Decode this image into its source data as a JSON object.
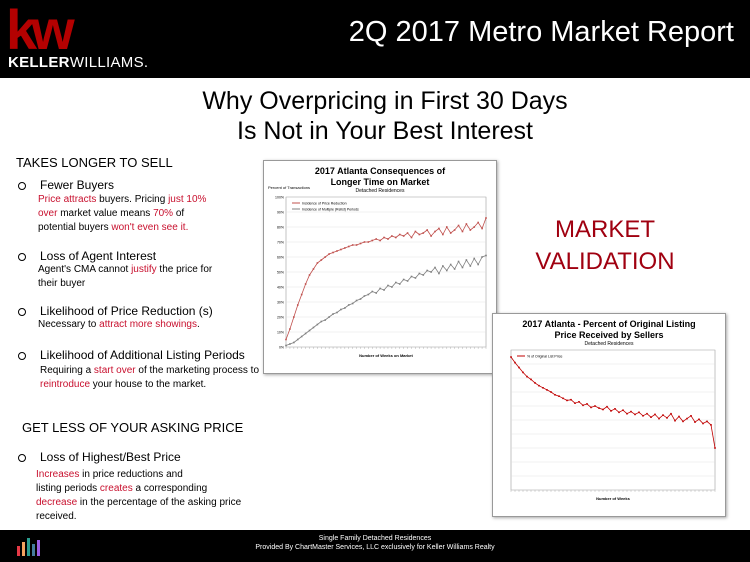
{
  "header": {
    "logo_mark": "kw",
    "logo_bold": "KELLER",
    "logo_light": "WILLIAMS.",
    "report_title": "2Q 2017 Metro Market Report"
  },
  "title_line1": "Why Overpricing in First 30 Days",
  "title_line2": "Is Not in Your Best Interest",
  "section1": {
    "heading": "TAKES LONGER TO SELL",
    "items": [
      {
        "label": "Fewer Buyers"
      },
      {
        "label": "Loss of  Agent Interest"
      },
      {
        "label": "Likelihood of Price Reduction (s)"
      },
      {
        "label": "Likelihood of Additional Listing Periods"
      }
    ],
    "fb": {
      "a": "Price",
      "b": " attracts ",
      "c": "buyers.  Pricing ",
      "d": "just 10%",
      "e": "over",
      "f": " market value means ",
      "g": "70%",
      "h": " of",
      "i": "potential buyers  ",
      "j": "won't even see it."
    },
    "ai": {
      "a": "Agent's CMA cannot ",
      "b": "justify",
      "c": " the price for",
      "d": "their buyer"
    },
    "pr": {
      "a": "Necessary to  ",
      "b": "attract more  showings",
      "c": "."
    },
    "lp": {
      "a": "Requiring a ",
      "b": "start over",
      "c": " of  the marketing process to",
      "d": "reintroduce",
      "e": "  your house to the market."
    }
  },
  "section2": {
    "heading": "GET LESS  OF YOUR ASKING  PRICE",
    "item": "Loss of Highest/Best Price",
    "desc": {
      "a": "Increases",
      "b": " in price reductions and",
      "c": "listing periods ",
      "d": "creates",
      "e": " a corresponding",
      "f": "decrease",
      "g": " in the percentage of the asking price",
      "h": "received."
    }
  },
  "market_validation": {
    "line1": "MARKET",
    "line2": "VALIDATION"
  },
  "footer": {
    "line1": "Single Family Detached Residences",
    "line2": "Provided By ChartMaster Services, LLC exclusively for Keller Williams Realty"
  },
  "colors": {
    "brand_red": "#b40101",
    "accent_red": "#c8102e",
    "validation_red": "#a00010"
  },
  "chart_data": [
    {
      "type": "line",
      "title": "2017 Atlanta Consequences of",
      "title_line2": "Longer Time on Market",
      "subtitle": "Detached Residences",
      "ylabel": "Percent of Transactions",
      "xlabel": "Number of Weeks on Market",
      "ylim": [
        0,
        100
      ],
      "yticks": [
        "100%",
        "90%",
        "80%",
        "70%",
        "60%",
        "50%",
        "40%",
        "30%",
        "20%",
        "10%",
        "0%"
      ],
      "x": [
        1,
        2,
        3,
        4,
        5,
        6,
        7,
        8,
        9,
        10,
        11,
        12,
        13,
        14,
        15,
        16,
        17,
        18,
        19,
        20,
        21,
        22,
        23,
        24,
        25,
        26,
        27,
        28,
        29,
        30,
        31,
        32,
        33,
        34,
        35,
        36,
        37,
        38,
        39,
        40,
        41,
        42,
        43,
        44,
        45,
        46,
        47,
        48,
        49,
        50,
        51,
        52
      ],
      "series": [
        {
          "name": "Incidence of Price Reduction",
          "color": "#c0504d",
          "values": [
            5,
            12,
            20,
            28,
            35,
            42,
            48,
            52,
            56,
            58,
            60,
            62,
            63,
            64,
            65,
            66,
            67,
            68,
            68,
            69,
            70,
            70,
            71,
            72,
            71,
            73,
            72,
            74,
            73,
            75,
            74,
            76,
            73,
            77,
            75,
            76,
            78,
            74,
            77,
            79,
            75,
            80,
            76,
            78,
            81,
            77,
            82,
            78,
            80,
            83,
            79,
            86
          ]
        },
        {
          "name": "Incidence of Multiple (Relist) Periods",
          "color": "#808080",
          "values": [
            1,
            2,
            3,
            5,
            7,
            9,
            11,
            13,
            15,
            17,
            18,
            20,
            22,
            23,
            25,
            26,
            28,
            29,
            31,
            32,
            34,
            35,
            37,
            36,
            39,
            38,
            41,
            40,
            43,
            42,
            45,
            44,
            47,
            46,
            49,
            48,
            51,
            50,
            53,
            49,
            54,
            51,
            55,
            52,
            57,
            53,
            58,
            54,
            59,
            55,
            60,
            61
          ]
        }
      ]
    },
    {
      "type": "line",
      "title": "2017 Atlanta - Percent of Original Listing",
      "title_line2": "Price Received by Sellers",
      "subtitle": "Detached Residences",
      "xlabel": "Number of Weeks",
      "ylim": [
        80,
        100
      ],
      "x": [
        1,
        2,
        3,
        4,
        5,
        6,
        7,
        8,
        9,
        10,
        11,
        12,
        13,
        14,
        15,
        16,
        17,
        18,
        19,
        20,
        21,
        22,
        23,
        24,
        25,
        26,
        27,
        28,
        29,
        30,
        31,
        32,
        33,
        34,
        35,
        36,
        37,
        38,
        39,
        40,
        41,
        42,
        43,
        44,
        45,
        46,
        47,
        48,
        49,
        50,
        51,
        52
      ],
      "series": [
        {
          "name": "% of Original List Price",
          "color": "#c00000",
          "values": [
            99,
            98.2,
            97.5,
            96.8,
            96.2,
            95.8,
            95.3,
            94.9,
            94.6,
            94.3,
            94.0,
            93.6,
            93.4,
            93.1,
            92.8,
            92.9,
            92.4,
            92.6,
            92.1,
            92.3,
            91.8,
            92.0,
            91.7,
            91.5,
            91.9,
            91.3,
            91.6,
            91.1,
            91.4,
            90.9,
            91.2,
            90.8,
            91.1,
            90.6,
            90.9,
            90.4,
            90.8,
            90.2,
            90.7,
            90.3,
            90.9,
            89.9,
            90.5,
            89.8,
            90.2,
            90.6,
            89.7,
            90.1,
            89.5,
            89.8,
            89.3,
            86.0
          ]
        }
      ]
    }
  ]
}
